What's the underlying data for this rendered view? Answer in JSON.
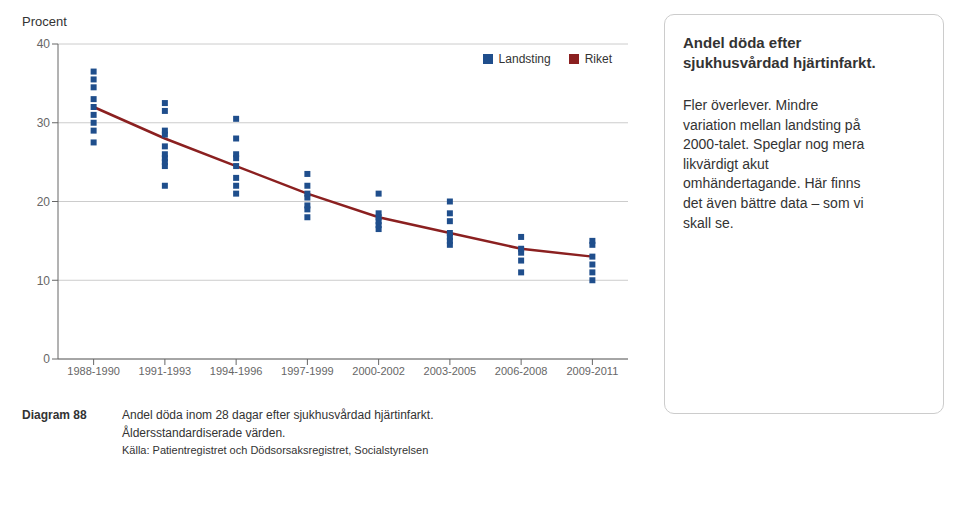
{
  "chart_data": {
    "type": "line",
    "ylabel": "Procent",
    "categories": [
      "1988-1990",
      "1991-1993",
      "1994-1996",
      "1997-1999",
      "2000-2002",
      "2003-2005",
      "2006-2008",
      "2009-2011"
    ],
    "series": [
      {
        "name": "Landsting",
        "type": "scatter",
        "marker": "square",
        "color": "#1f4e8c",
        "values": [
          [
            27.5,
            29.0,
            30.0,
            31.0,
            32.0,
            33.0,
            34.5,
            35.5,
            36.5
          ],
          [
            22.0,
            24.5,
            25.0,
            25.5,
            26.0,
            27.0,
            28.5,
            29.0,
            31.5,
            32.5
          ],
          [
            21.0,
            22.0,
            23.0,
            24.5,
            25.5,
            26.0,
            28.0,
            30.5
          ],
          [
            18.0,
            19.0,
            19.5,
            20.5,
            21.0,
            22.0,
            23.5
          ],
          [
            16.5,
            17.0,
            17.5,
            18.0,
            18.5,
            21.0
          ],
          [
            14.5,
            15.0,
            15.5,
            16.0,
            17.5,
            18.5,
            20.0
          ],
          [
            11.0,
            12.5,
            13.5,
            14.0,
            15.5
          ],
          [
            10.0,
            11.0,
            12.0,
            13.0,
            14.5,
            15.0
          ]
        ]
      },
      {
        "name": "Riket",
        "type": "line",
        "color": "#8b2020",
        "values": [
          32.0,
          28.0,
          24.5,
          21.0,
          18.0,
          16.0,
          14.0,
          13.0
        ]
      }
    ],
    "ylim": [
      0,
      40
    ],
    "yticks": [
      0,
      10,
      20,
      30,
      40
    ],
    "grid": true,
    "legend": "upper right",
    "annotation": {
      "title": "Andel döda efter\nsjukhusvårdad hjärtinfarkt.",
      "text": "Fler överlever. Mindre\nvariation mellan landsting på\n2000-talet. Speglar nog mera\nlikvärdigt akut\nomhändertagande. Här finns\ndet även bättre data – som vi\nskall se."
    },
    "caption": {
      "label": "Diagram 88",
      "lines": [
        "Andel döda inom 28 dagar efter sjukhusvårdad hjärtinfarkt.",
        "Åldersstandardiserade värden.",
        "Källa: Patientregistret och Dödsorsaksregistret, Socialstyrelsen"
      ]
    }
  }
}
